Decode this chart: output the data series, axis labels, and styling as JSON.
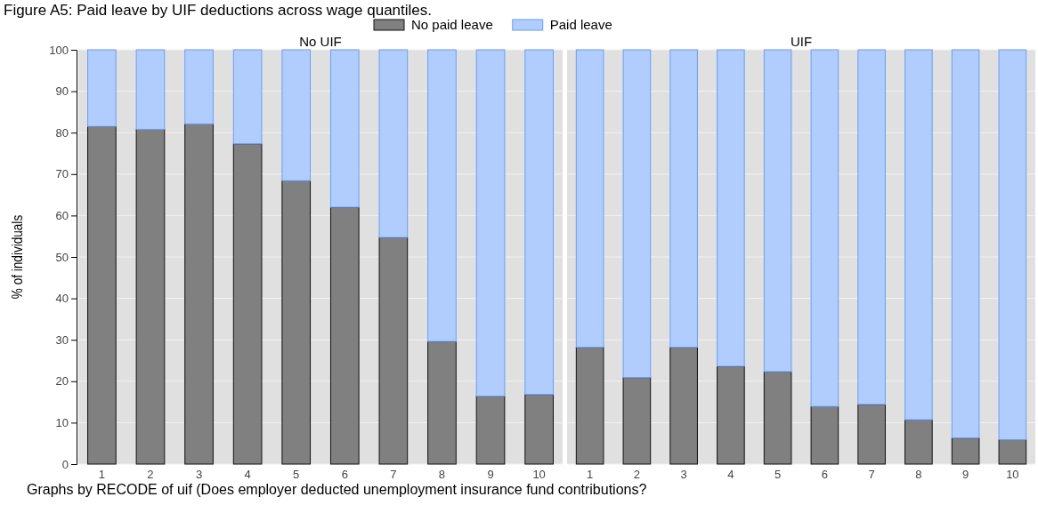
{
  "chart_data": [
    {
      "type": "bar",
      "title": "Figure A5: Paid leave by UIF deductions across wage quantiles.",
      "subtitle": "No UIF",
      "ylabel": "% of individuals",
      "categories": [
        "1",
        "2",
        "3",
        "4",
        "5",
        "6",
        "7",
        "8",
        "9",
        "10"
      ],
      "stacked": true,
      "legend": "top",
      "grid": "y",
      "ylim": [
        0,
        100
      ],
      "yticks": [
        0,
        10,
        20,
        30,
        40,
        50,
        60,
        70,
        80,
        90,
        100
      ],
      "series": [
        {
          "name": "No paid leave",
          "color": "#808080",
          "values": [
            81.5,
            80.8,
            82.1,
            77.3,
            68.4,
            62.0,
            54.7,
            29.6,
            16.4,
            16.8
          ]
        },
        {
          "name": "Paid leave",
          "color": "#b0cdfd",
          "values": [
            18.5,
            19.2,
            17.9,
            22.7,
            31.6,
            38.0,
            45.3,
            70.4,
            83.6,
            83.2
          ]
        }
      ],
      "annotations": [
        "Graphs by RECODE of uif (Does employer deducted unemployment insurance fund contributions?"
      ]
    },
    {
      "type": "bar",
      "subtitle": "UIF",
      "categories": [
        "1",
        "2",
        "3",
        "4",
        "5",
        "6",
        "7",
        "8",
        "9",
        "10"
      ],
      "stacked": true,
      "grid": "y",
      "tick_labels": "x",
      "ylim": [
        0,
        100
      ],
      "yticks": [
        0,
        10,
        20,
        30,
        40,
        50,
        60,
        70,
        80,
        90,
        100
      ],
      "series": [
        {
          "color": "#808080",
          "values": [
            28.2,
            20.9,
            28.2,
            23.6,
            22.3,
            13.9,
            14.4,
            10.7,
            6.3,
            5.9
          ]
        },
        {
          "color": "#b0cdfd",
          "values": [
            71.8,
            79.1,
            71.8,
            76.4,
            77.7,
            86.1,
            85.6,
            89.3,
            93.7,
            94.1
          ]
        }
      ]
    }
  ]
}
